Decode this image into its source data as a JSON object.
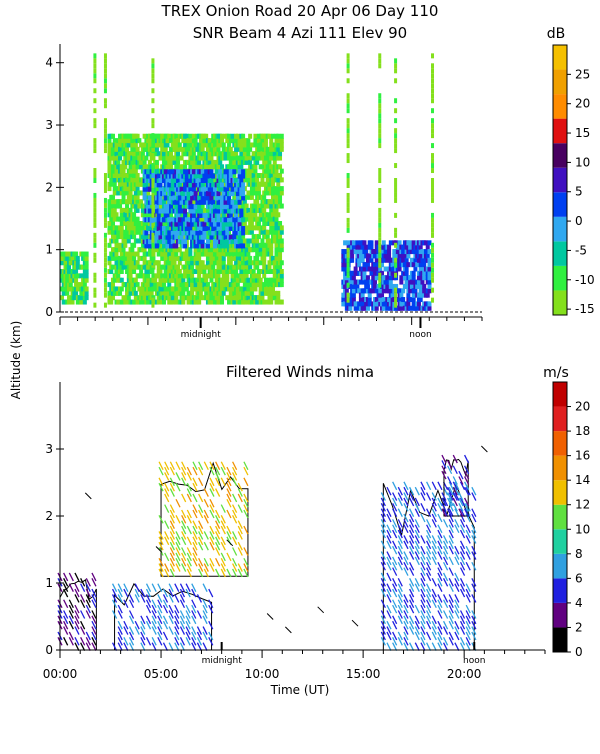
{
  "title_line1": "TREX Onion Road  20 Apr 06 Day 110",
  "title_line2": "SNR Beam 4 Azi 111 Elev 90",
  "ylabel": "Altitude (km)",
  "xlabel": "Time (UT)",
  "colors": {
    "snr_scale": [
      "#84e01c",
      "#30f040",
      "#00c8a0",
      "#30a8f0",
      "#0040f0",
      "#4010c0",
      "#480060",
      "#e01010",
      "#ff8c00",
      "#f0a000",
      "#f5c000"
    ],
    "wind_scale": [
      "#000000",
      "#600080",
      "#2020e0",
      "#30a0e0",
      "#20d0a0",
      "#60e040",
      "#f0c000",
      "#f09000",
      "#f06000",
      "#e02020",
      "#c00000"
    ]
  },
  "chart_data": [
    {
      "type": "heatmap",
      "title": "SNR Beam 4 Azi 111 Elev 90",
      "ylabel": "Altitude (km)",
      "ylim": [
        0,
        4.3
      ],
      "yticks": [
        "0",
        "1",
        "2",
        "3",
        "4"
      ],
      "xlim": [
        0,
        24
      ],
      "x_markers": [
        "midnight",
        "noon"
      ],
      "colorbar": {
        "unit": "dB",
        "ticks": [
          "-15",
          "-10",
          "-5",
          "0",
          "5",
          "10",
          "15",
          "20",
          "25"
        ],
        "range": [
          -16,
          30
        ]
      },
      "regions": [
        {
          "time_start": 0.0,
          "time_end": 1.5,
          "alt_low": 0.2,
          "alt_high": 1.0,
          "snr_db": -10
        },
        {
          "time_start": 2.7,
          "time_end": 12.5,
          "alt_low": 0.2,
          "alt_high": 2.9,
          "snr_db": -12
        },
        {
          "time_start": 4.7,
          "time_end": 10.3,
          "alt_low": 1.1,
          "alt_high": 2.3,
          "snr_db": 0
        },
        {
          "time_start": 16.0,
          "time_end": 21.0,
          "alt_low": 0.1,
          "alt_high": 1.2,
          "snr_db": 3
        }
      ]
    },
    {
      "type": "scatter",
      "title": "Filtered Winds nima",
      "ylabel": "Altitude (km)",
      "xlabel": "Time (UT)",
      "ylim": [
        0,
        4
      ],
      "yticks": [
        "0",
        "1",
        "2",
        "3"
      ],
      "xlim": [
        0,
        24
      ],
      "xticks": [
        "00:00",
        "05:00",
        "10:00",
        "15:00",
        "20:00"
      ],
      "x_markers": [
        "midnight",
        "noon"
      ],
      "colorbar": {
        "unit": "m/s",
        "ticks": [
          "0",
          "2",
          "4",
          "6",
          "8",
          "10",
          "12",
          "14",
          "16",
          "18",
          "20"
        ],
        "range": [
          0,
          22
        ]
      },
      "regions": [
        {
          "time_start": 0.0,
          "time_end": 1.8,
          "alt_low": 0.0,
          "alt_high": 1.1,
          "speed": 3
        },
        {
          "time_start": 2.7,
          "time_end": 7.5,
          "alt_low": 0.0,
          "alt_high": 1.0,
          "speed": 6
        },
        {
          "time_start": 5.0,
          "time_end": 9.3,
          "alt_low": 1.1,
          "alt_high": 2.8,
          "speed": 13
        },
        {
          "time_start": 16.0,
          "time_end": 20.5,
          "alt_low": 0.0,
          "alt_high": 2.5,
          "speed": 6
        },
        {
          "time_start": 19.0,
          "time_end": 20.2,
          "alt_low": 2.0,
          "alt_high": 2.9,
          "speed": 5
        }
      ]
    }
  ]
}
